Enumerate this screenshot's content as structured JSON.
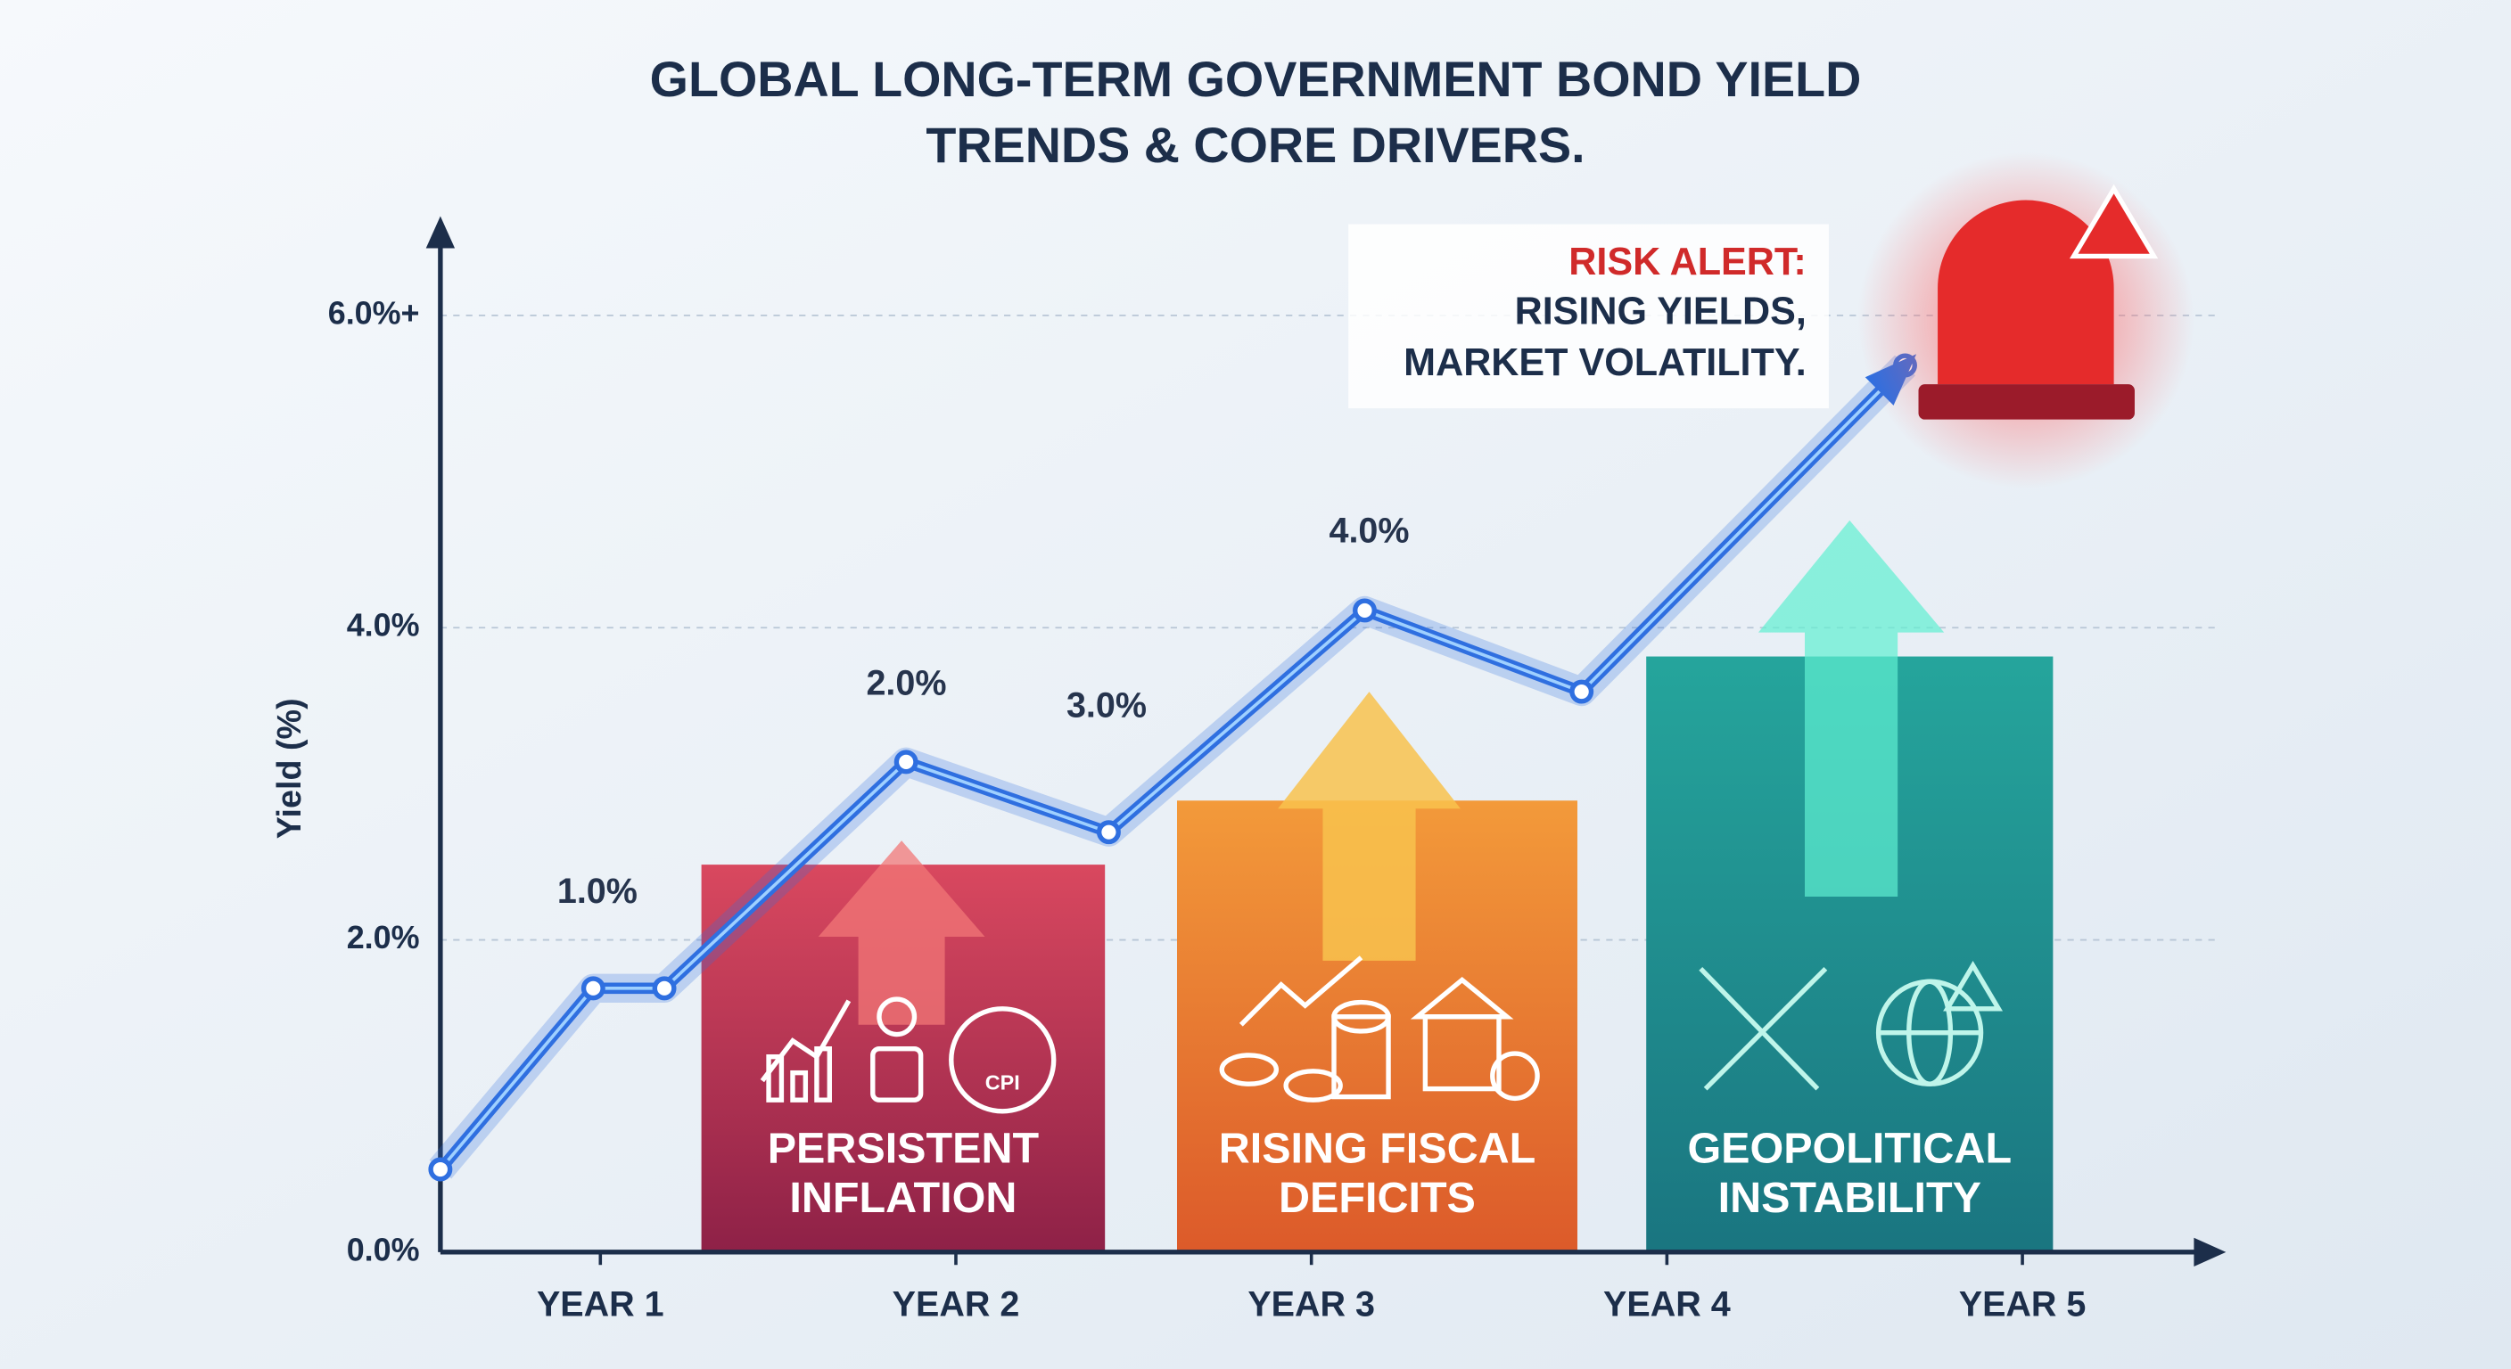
{
  "chart_data": {
    "type": "line",
    "title": [
      "GLOBAL LONG-TERM GOVERNMENT BOND YIELD",
      "TRENDS & CORE DRIVERS."
    ],
    "y_label": "Yield (%)",
    "xlim": [
      0.55,
      5.55
    ],
    "xticks": [
      {
        "value": 1,
        "label": "YEAR 1"
      },
      {
        "value": 2,
        "label": "YEAR 2"
      },
      {
        "value": 3,
        "label": "YEAR 3"
      },
      {
        "value": 4,
        "label": "YEAR 4"
      },
      {
        "value": 5,
        "label": "YEAR 5"
      }
    ],
    "ylim": [
      0,
      6.6
    ],
    "yticks": [
      {
        "value": 0,
        "label": "0.0%"
      },
      {
        "value": 2,
        "label": "2.0%"
      },
      {
        "value": 4,
        "label": "4.0%"
      },
      {
        "value": 6,
        "label": "6.0%+"
      }
    ],
    "grid": true,
    "series": [
      {
        "color": "#2f6fe0",
        "x": [
          0.55,
          0.98,
          1.18,
          1.86,
          2.43,
          3.15,
          3.76,
          4.67
        ],
        "values": [
          0.53,
          1.69,
          1.69,
          3.14,
          2.69,
          4.11,
          3.59,
          5.68
        ]
      }
    ],
    "annotations": [
      "1.0%",
      "2.0%",
      "3.0%",
      "4.0%"
    ],
    "drivers": [
      {
        "lines": [
          "PERSISTENT",
          "INFLATION"
        ],
        "color": "#b3304f",
        "icon_text": "CPI"
      },
      {
        "lines": [
          "RISING FISCAL",
          "DEFICITS"
        ],
        "color": "#e2682c"
      },
      {
        "lines": [
          "GEOPOLITICAL",
          "INSTABILITY"
        ],
        "color": "#1e8f8d"
      }
    ],
    "alert": [
      "RISK ALERT:",
      "RISING YIELDS,",
      "MARKET VOLATILITY."
    ]
  }
}
